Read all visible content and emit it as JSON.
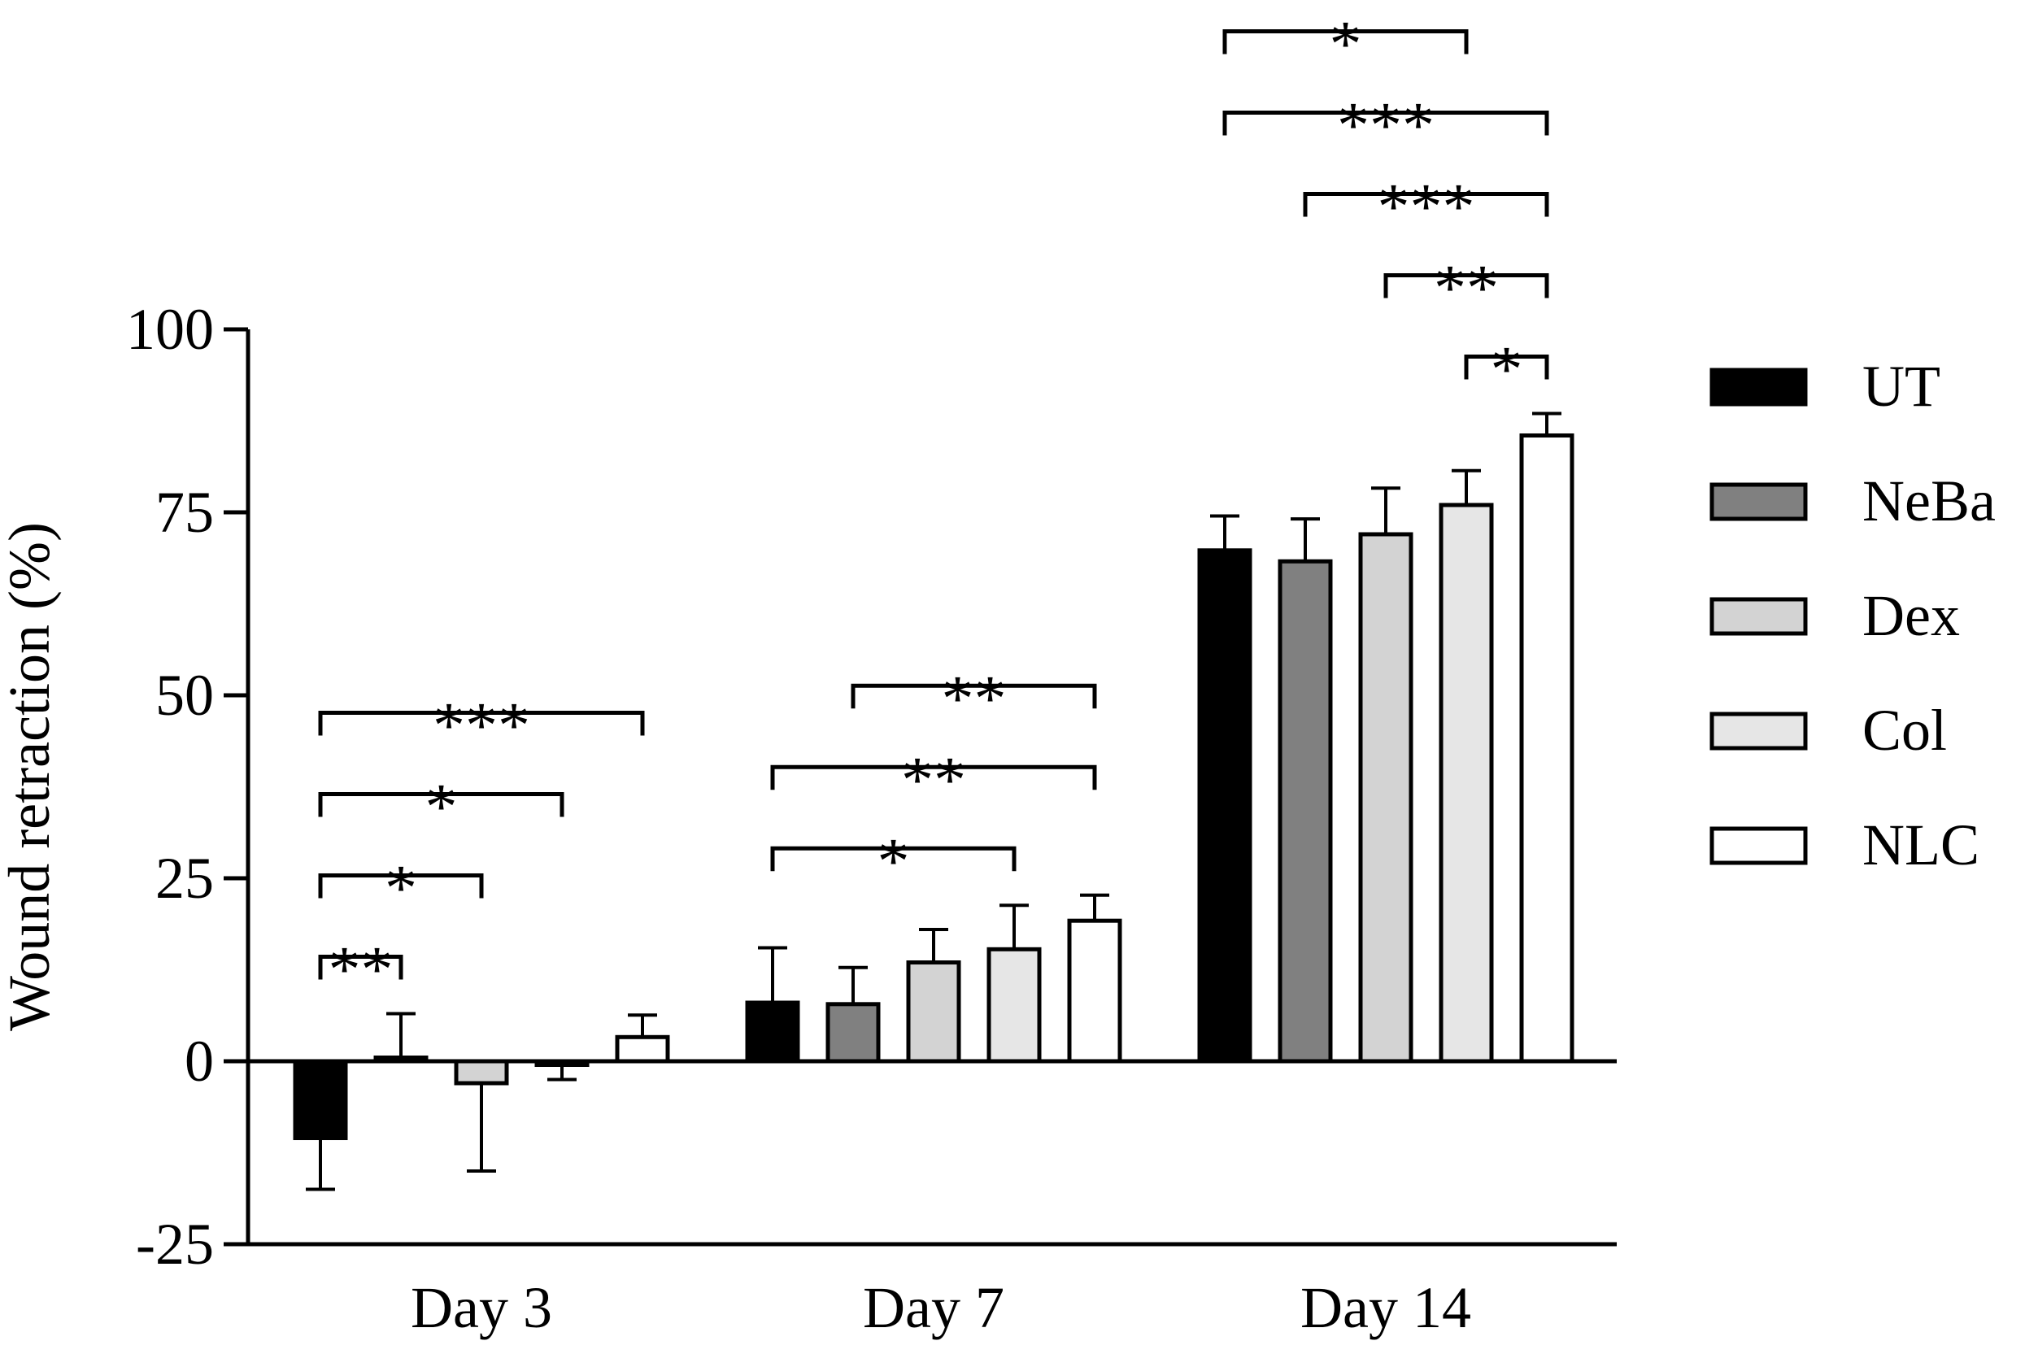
{
  "chart_data": {
    "type": "bar",
    "title": "",
    "xlabel": "",
    "ylabel": "Wound retraction (%)",
    "ylim": [
      -25,
      100
    ],
    "yticks": [
      -25,
      0,
      25,
      50,
      75,
      100
    ],
    "ytick_labels": [
      "-25",
      "0",
      "25",
      "50",
      "75",
      "100"
    ],
    "categories": [
      "Day 3",
      "Day 7",
      "Day 14"
    ],
    "legend_position": "right",
    "series": [
      {
        "name": "UT",
        "color": "#000000",
        "values": [
          -10.5,
          8.0,
          69.8
        ],
        "errors": [
          7.0,
          7.5,
          4.7
        ]
      },
      {
        "name": "NeBa",
        "color": "#808080",
        "values": [
          0.5,
          7.8,
          68.3
        ],
        "errors": [
          6.0,
          5.0,
          5.8
        ]
      },
      {
        "name": "Dex",
        "color": "#d3d3d3",
        "values": [
          -3.0,
          13.5,
          72.0
        ],
        "errors": [
          12.0,
          4.5,
          6.3
        ]
      },
      {
        "name": "Col",
        "color": "#e6e6e6",
        "values": [
          -0.5,
          15.3,
          76.0
        ],
        "errors": [
          2.0,
          6.0,
          4.7
        ]
      },
      {
        "name": "NLC",
        "color": "#ffffff",
        "values": [
          3.3,
          19.2,
          85.5
        ],
        "errors": [
          3.0,
          3.5,
          3.0
        ]
      }
    ],
    "significance": [
      {
        "category": 0,
        "from": 0,
        "to": 1,
        "label": "**"
      },
      {
        "category": 0,
        "from": 0,
        "to": 2,
        "label": "*"
      },
      {
        "category": 0,
        "from": 0,
        "to": 3,
        "label": "*"
      },
      {
        "category": 0,
        "from": 0,
        "to": 4,
        "label": "***"
      },
      {
        "category": 1,
        "from": 0,
        "to": 3,
        "label": "*"
      },
      {
        "category": 1,
        "from": 0,
        "to": 4,
        "label": "**"
      },
      {
        "category": 1,
        "from": 1,
        "to": 4,
        "label": "**"
      },
      {
        "category": 2,
        "from": 3,
        "to": 4,
        "label": "*"
      },
      {
        "category": 2,
        "from": 2,
        "to": 4,
        "label": "**"
      },
      {
        "category": 2,
        "from": 1,
        "to": 4,
        "label": "***"
      },
      {
        "category": 2,
        "from": 0,
        "to": 4,
        "label": "***"
      },
      {
        "category": 2,
        "from": 0,
        "to": 3,
        "label": "*"
      }
    ]
  }
}
